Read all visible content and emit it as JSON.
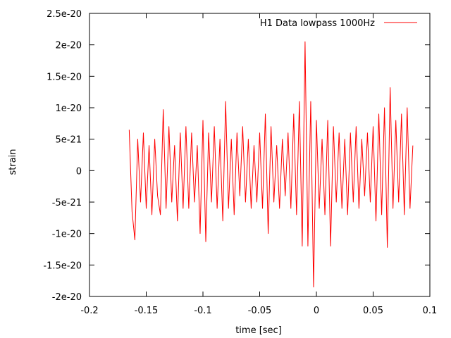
{
  "chart_data": {
    "type": "line",
    "title": "",
    "xlabel": "time [sec]",
    "ylabel": "strain",
    "xlim": [
      -0.2,
      0.1
    ],
    "ylim": [
      -2e-20,
      2.5e-20
    ],
    "x_ticks": [
      -0.2,
      -0.15,
      -0.1,
      -0.05,
      0,
      0.05,
      0.1
    ],
    "x_tick_labels": [
      "-0.2",
      "-0.15",
      "-0.1",
      "-0.05",
      "0",
      "0.05",
      "0.1"
    ],
    "y_ticks": [
      -2e-20,
      -1.5e-20,
      -1e-20,
      -5e-21,
      0,
      5e-21,
      1e-20,
      1.5e-20,
      2e-20,
      2.5e-20
    ],
    "y_tick_labels": [
      "-2e-20",
      "-1.5e-20",
      "-1e-20",
      "-5e-21",
      "0",
      "5e-21",
      "1e-20",
      "1.5e-20",
      "2e-20",
      "2.5e-20"
    ],
    "grid": false,
    "legend_position": "top-right",
    "series": [
      {
        "name": "H1 Data lowpass 1000Hz",
        "color": "#ff0000",
        "x": [
          -0.165,
          -0.1625,
          -0.16,
          -0.1575,
          -0.155,
          -0.1525,
          -0.15,
          -0.1475,
          -0.145,
          -0.1425,
          -0.14,
          -0.1375,
          -0.135,
          -0.1325,
          -0.13,
          -0.1275,
          -0.125,
          -0.1225,
          -0.12,
          -0.1175,
          -0.115,
          -0.1125,
          -0.11,
          -0.1075,
          -0.105,
          -0.1025,
          -0.1,
          -0.0975,
          -0.095,
          -0.0925,
          -0.09,
          -0.0875,
          -0.085,
          -0.0825,
          -0.08,
          -0.0775,
          -0.075,
          -0.0725,
          -0.07,
          -0.0675,
          -0.065,
          -0.0625,
          -0.06,
          -0.0575,
          -0.055,
          -0.0525,
          -0.05,
          -0.0475,
          -0.045,
          -0.0425,
          -0.04,
          -0.0375,
          -0.035,
          -0.0325,
          -0.03,
          -0.0275,
          -0.025,
          -0.0225,
          -0.02,
          -0.0175,
          -0.015,
          -0.0125,
          -0.01,
          -0.0075,
          -0.005,
          -0.0025,
          0,
          0.0025,
          0.005,
          0.0075,
          0.01,
          0.0125,
          0.015,
          0.0175,
          0.02,
          0.0225,
          0.025,
          0.0275,
          0.03,
          0.0325,
          0.035,
          0.0375,
          0.04,
          0.0425,
          0.045,
          0.0475,
          0.05,
          0.0525,
          0.055,
          0.0575,
          0.06,
          0.0625,
          0.065,
          0.0675,
          0.07,
          0.0725,
          0.075,
          0.0775,
          0.08,
          0.0825,
          0.085
        ],
        "y": [
          6.5e-21,
          -6.5e-21,
          -1.1e-20,
          5e-21,
          -5e-21,
          6e-21,
          -6e-21,
          4e-21,
          -7e-21,
          5e-21,
          -4e-21,
          -7e-21,
          9.7e-21,
          -6e-21,
          7e-21,
          -5e-21,
          4e-21,
          -8e-21,
          6e-21,
          -6e-21,
          7e-21,
          -6e-21,
          6e-21,
          -5e-21,
          4e-21,
          -1e-20,
          8e-21,
          -1.13e-20,
          6e-21,
          -5e-21,
          7e-21,
          -6e-21,
          5e-21,
          -8e-21,
          1.1e-20,
          -6e-21,
          5e-21,
          -7e-21,
          6e-21,
          -4e-21,
          7e-21,
          -5e-21,
          5e-21,
          -6e-21,
          4e-21,
          -5e-21,
          6e-21,
          -6e-21,
          9e-21,
          -1e-20,
          7e-21,
          -5e-21,
          4e-21,
          -6e-21,
          5e-21,
          -4e-21,
          6e-21,
          -6e-21,
          9e-21,
          -7e-21,
          1.1e-20,
          -1.2e-20,
          2.05e-20,
          -1.2e-20,
          1.1e-20,
          -1.85e-20,
          8e-21,
          -6e-21,
          5e-21,
          -7e-21,
          8e-21,
          -1.2e-20,
          7e-21,
          -5e-21,
          6e-21,
          -6e-21,
          5e-21,
          -7e-21,
          6e-21,
          -5e-21,
          7e-21,
          -6e-21,
          5e-21,
          -4e-21,
          6e-21,
          -5e-21,
          7e-21,
          -8e-21,
          9e-21,
          -7e-21,
          1e-20,
          -1.22e-20,
          1.32e-20,
          -6e-21,
          8e-21,
          -5e-21,
          9e-21,
          -7e-21,
          1e-20,
          -6e-21,
          4e-21
        ]
      }
    ]
  }
}
